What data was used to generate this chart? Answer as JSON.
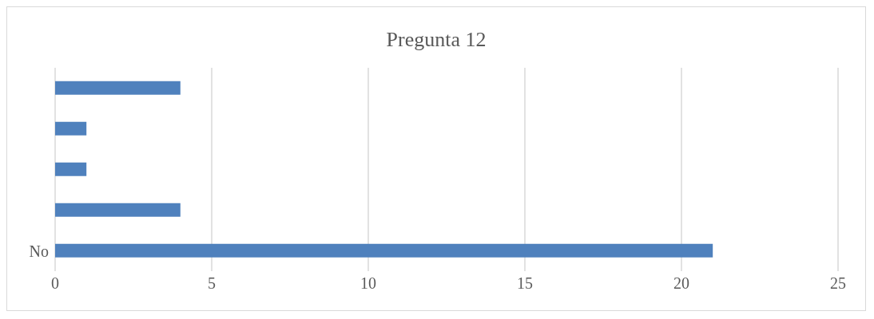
{
  "chart_data": {
    "type": "bar",
    "orientation": "horizontal",
    "title": "Pregunta 12",
    "categories": [
      null,
      null,
      null,
      null,
      "No"
    ],
    "values": [
      4,
      1,
      1,
      4,
      21
    ],
    "color": "#4f81bd",
    "xlim": [
      0,
      25
    ],
    "xticks": [
      0,
      5,
      10,
      15,
      20,
      25
    ],
    "grid": "x"
  }
}
